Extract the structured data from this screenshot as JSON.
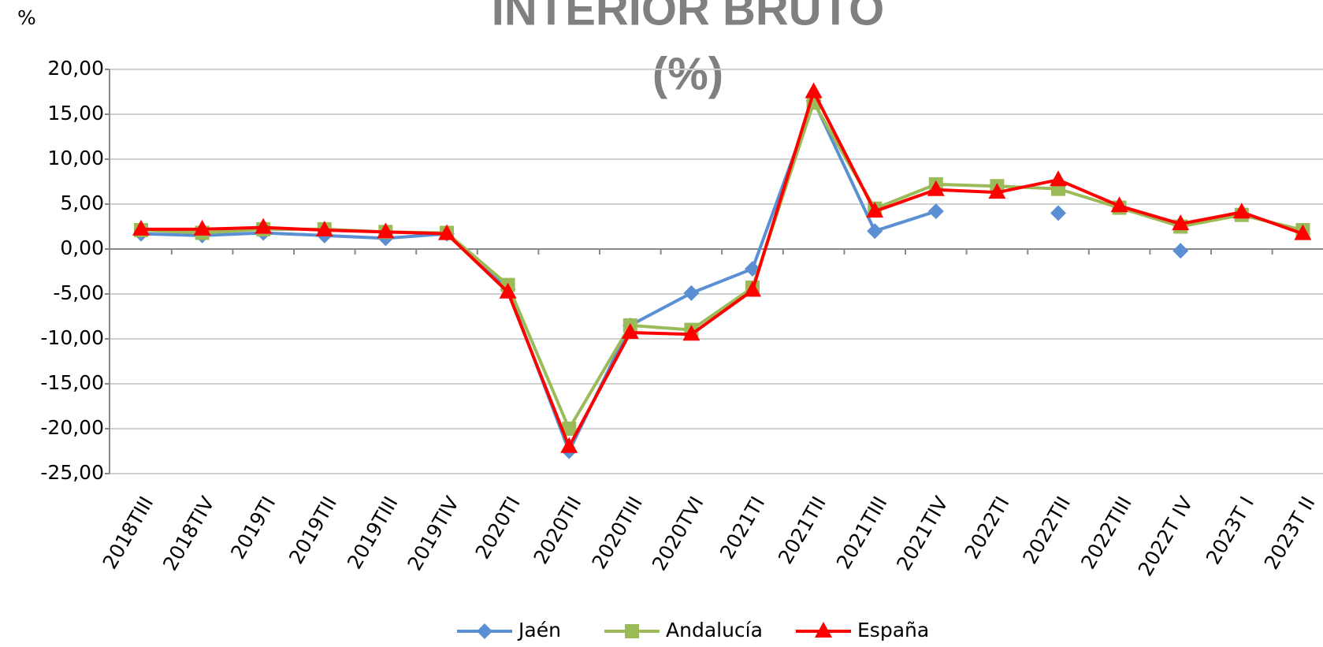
{
  "chart_data": {
    "type": "line",
    "title": [
      "INTERIOR BRUTO",
      "(%)"
    ],
    "y_label": "%",
    "categories": [
      "2018TIII",
      "2018TIV",
      "2019TI",
      "2019TII",
      "2019TIII",
      "2019TIV",
      "2020TI",
      "2020TII",
      "2020TIII",
      "2020TVI",
      "2021TI",
      "2021TII",
      "2021TIII",
      "2021TIV",
      "2022TI",
      "2022TII",
      "2022TIII",
      "2022T IV",
      "2023T I",
      "2023T II"
    ],
    "series": [
      {
        "name": "Jaén",
        "color": "#5b8fd4",
        "marker": "diamond",
        "values": [
          1.7,
          1.5,
          1.8,
          1.5,
          1.2,
          1.7,
          -4.5,
          -22.5,
          -8.5,
          -4.9,
          -2.2,
          16.5,
          2.0,
          4.2,
          null,
          4.0,
          null,
          -0.2,
          null,
          null
        ]
      },
      {
        "name": "Andalucía",
        "color": "#9bbb59",
        "marker": "square",
        "values": [
          2.1,
          1.8,
          2.2,
          2.2,
          1.9,
          1.8,
          -4.0,
          -20.0,
          -8.5,
          -9.0,
          -4.3,
          16.3,
          4.5,
          7.2,
          7.0,
          6.7,
          4.6,
          2.5,
          3.8,
          2.1
        ]
      },
      {
        "name": "España",
        "color": "#ff0000",
        "marker": "triangle",
        "values": [
          2.2,
          2.2,
          2.4,
          2.1,
          1.9,
          1.7,
          -4.8,
          -22.0,
          -9.3,
          -9.5,
          -4.6,
          17.5,
          4.2,
          6.6,
          6.3,
          7.7,
          4.8,
          2.8,
          4.1,
          1.7
        ]
      }
    ],
    "ylim": [
      -25,
      20
    ],
    "yticks": [
      {
        "value": -25,
        "label": "-25,00"
      },
      {
        "value": -20,
        "label": "-20,00"
      },
      {
        "value": -15,
        "label": "-15,00"
      },
      {
        "value": -10,
        "label": "-10,00"
      },
      {
        "value": -5,
        "label": "-5,00"
      },
      {
        "value": 0,
        "label": "0,00"
      },
      {
        "value": 5,
        "label": "5,00"
      },
      {
        "value": 10,
        "label": "10,00"
      },
      {
        "value": 15,
        "label": "15,00"
      },
      {
        "value": 20,
        "label": "20,00"
      }
    ],
    "grid": true,
    "legend": "bottom"
  }
}
